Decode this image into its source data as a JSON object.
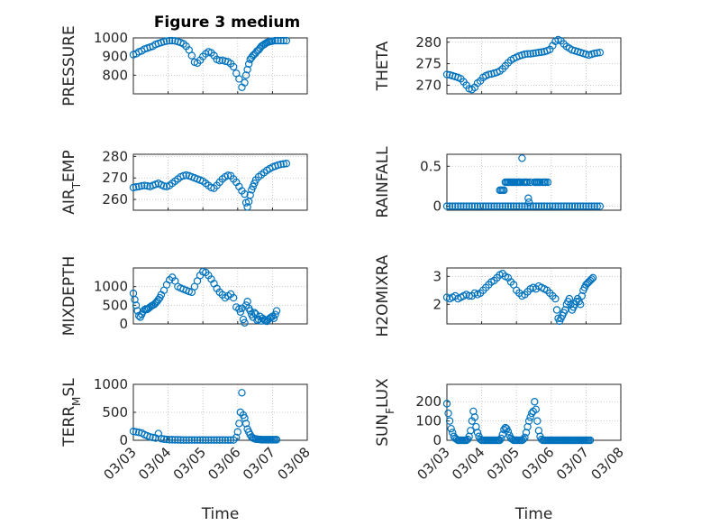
{
  "figure_title": "Figure 3 medium",
  "chart_data": [
    {
      "type": "scatter",
      "ylabel": "PRESSURE",
      "xlabel": "",
      "title": "Figure 3 medium",
      "xlim": [
        0,
        5
      ],
      "ylim": [
        700,
        1000
      ],
      "yticks": [
        800,
        900,
        1000
      ],
      "xtick_labels_shown": false,
      "grid": true,
      "x": [
        0,
        0.08,
        0.16,
        0.24,
        0.32,
        0.4,
        0.48,
        0.56,
        0.64,
        0.72,
        0.8,
        0.88,
        0.96,
        1.04,
        1.12,
        1.2,
        1.28,
        1.36,
        1.44,
        1.52,
        1.6,
        1.68,
        1.76,
        1.84,
        1.92,
        2.0,
        2.08,
        2.16,
        2.24,
        2.32,
        2.4,
        2.48,
        2.56,
        2.64,
        2.72,
        2.8,
        2.88,
        2.96,
        3.04,
        3.12,
        3.2,
        3.24,
        3.28,
        3.32,
        3.36,
        3.4,
        3.44,
        3.48,
        3.52,
        3.56,
        3.6,
        3.64,
        3.68,
        3.72,
        3.76,
        3.8,
        3.84,
        3.88,
        3.92,
        3.96,
        4.0,
        4.08,
        4.16,
        4.24,
        4.32,
        4.4
      ],
      "y": [
        910,
        915,
        925,
        930,
        940,
        945,
        950,
        955,
        965,
        970,
        975,
        980,
        983,
        985,
        985,
        984,
        980,
        975,
        968,
        955,
        935,
        905,
        870,
        865,
        880,
        900,
        915,
        925,
        920,
        905,
        885,
        878,
        880,
        875,
        872,
        862,
        845,
        810,
        780,
        735,
        760,
        800,
        830,
        860,
        885,
        895,
        905,
        912,
        920,
        930,
        935,
        945,
        955,
        960,
        965,
        970,
        975,
        978,
        980,
        982,
        983,
        985,
        985,
        985,
        985,
        985
      ]
    },
    {
      "type": "scatter",
      "ylabel": "THETA",
      "xlabel": "",
      "xlim": [
        0,
        5
      ],
      "ylim": [
        268,
        281
      ],
      "yticks": [
        270,
        275,
        280
      ],
      "xtick_labels_shown": false,
      "grid": true,
      "x": [
        0,
        0.08,
        0.16,
        0.24,
        0.32,
        0.4,
        0.48,
        0.56,
        0.64,
        0.72,
        0.8,
        0.88,
        0.96,
        1.04,
        1.12,
        1.2,
        1.28,
        1.36,
        1.44,
        1.52,
        1.6,
        1.68,
        1.76,
        1.84,
        1.92,
        2.0,
        2.08,
        2.16,
        2.24,
        2.32,
        2.4,
        2.48,
        2.56,
        2.64,
        2.72,
        2.8,
        2.88,
        2.96,
        3.04,
        3.12,
        3.2,
        3.28,
        3.36,
        3.44,
        3.52,
        3.6,
        3.68,
        3.76,
        3.84,
        3.92,
        4.0,
        4.08,
        4.16,
        4.24,
        4.32,
        4.4
      ],
      "y": [
        272.5,
        272.4,
        272.2,
        272.0,
        271.8,
        271.5,
        270.8,
        270.0,
        269.2,
        269.0,
        269.5,
        270.5,
        271.0,
        271.8,
        272.2,
        272.5,
        272.6,
        272.8,
        273.0,
        273.3,
        273.8,
        274.5,
        275.2,
        275.8,
        276.2,
        276.5,
        276.8,
        277.0,
        277.2,
        277.3,
        277.3,
        277.4,
        277.5,
        277.6,
        277.7,
        277.8,
        278.0,
        278.3,
        279.2,
        280.2,
        280.6,
        280.3,
        279.6,
        279.0,
        278.6,
        278.2,
        278.0,
        277.8,
        277.6,
        277.4,
        277.2,
        277.0,
        277.2,
        277.4,
        277.5,
        277.6
      ]
    },
    {
      "type": "scatter",
      "ylabel": "AIR_TEMP",
      "xlabel": "",
      "xlim": [
        0,
        5
      ],
      "ylim": [
        255,
        281
      ],
      "yticks": [
        260,
        270,
        280
      ],
      "xtick_labels_shown": false,
      "grid": true,
      "x": [
        0,
        0.08,
        0.16,
        0.24,
        0.32,
        0.4,
        0.48,
        0.56,
        0.64,
        0.72,
        0.8,
        0.88,
        0.96,
        1.04,
        1.12,
        1.2,
        1.28,
        1.36,
        1.44,
        1.52,
        1.6,
        1.68,
        1.76,
        1.84,
        1.92,
        2.0,
        2.08,
        2.16,
        2.24,
        2.32,
        2.4,
        2.48,
        2.56,
        2.64,
        2.72,
        2.8,
        2.88,
        2.96,
        3.04,
        3.12,
        3.2,
        3.24,
        3.28,
        3.32,
        3.36,
        3.4,
        3.44,
        3.48,
        3.52,
        3.6,
        3.68,
        3.76,
        3.84,
        3.92,
        4.0,
        4.08,
        4.16,
        4.24,
        4.32,
        4.4
      ],
      "y": [
        265.5,
        265.8,
        266,
        266.3,
        266.5,
        266.3,
        266,
        266.5,
        267,
        267.5,
        266.8,
        266.2,
        266,
        266.5,
        267.5,
        268.5,
        269.5,
        270.5,
        271,
        271.3,
        271,
        270.5,
        270,
        269.5,
        269,
        268.5,
        267.5,
        266.5,
        265.5,
        265.2,
        266.5,
        268,
        269.5,
        270.5,
        271.2,
        271,
        269.5,
        268,
        266,
        264,
        262.5,
        258.5,
        256.5,
        259,
        262,
        264.5,
        266,
        267.5,
        269,
        270.5,
        271.5,
        272.5,
        273.5,
        274.3,
        275,
        275.5,
        276,
        276.3,
        276.5,
        276.7
      ]
    },
    {
      "type": "scatter",
      "ylabel": "RAINFALL",
      "xlabel": "",
      "xlim": [
        0,
        5
      ],
      "ylim": [
        -0.05,
        0.65
      ],
      "yticks": [
        0,
        0.5
      ],
      "xtick_labels_shown": false,
      "grid": true,
      "x": [
        0,
        0.08,
        0.16,
        0.24,
        0.32,
        0.4,
        0.48,
        0.56,
        0.64,
        0.72,
        0.8,
        0.88,
        0.96,
        1.04,
        1.12,
        1.2,
        1.28,
        1.36,
        1.44,
        1.52,
        1.6,
        1.68,
        1.76,
        1.84,
        1.92,
        2.0,
        2.08,
        2.16,
        2.24,
        2.32,
        2.4,
        2.48,
        2.56,
        2.64,
        2.72,
        2.8,
        2.88,
        2.96,
        3.04,
        3.12,
        3.2,
        3.28,
        3.36,
        3.44,
        3.52,
        3.6,
        3.68,
        3.76,
        3.84,
        3.92,
        4.0,
        4.08,
        4.16,
        4.24,
        4.32,
        4.4,
        1.52,
        1.56,
        1.6,
        1.64,
        1.68,
        1.72,
        1.76,
        1.8,
        1.84,
        1.88,
        1.92,
        1.96,
        2.0,
        2.04,
        2.08,
        2.12,
        2.16,
        2.2,
        2.24,
        2.28,
        2.32,
        2.34,
        2.36,
        2.4,
        2.52,
        2.56,
        2.6,
        2.64,
        2.68,
        2.76,
        2.8,
        2.84,
        2.9
      ],
      "y": [
        0,
        0,
        0,
        0,
        0,
        0,
        0,
        0,
        0,
        0,
        0,
        0,
        0,
        0,
        0,
        0,
        0,
        0,
        0,
        0,
        0,
        0,
        0,
        0,
        0,
        0,
        0,
        0,
        0,
        0,
        0,
        0,
        0,
        0,
        0,
        0,
        0,
        0,
        0,
        0,
        0,
        0,
        0,
        0,
        0,
        0,
        0,
        0,
        0,
        0,
        0,
        0,
        0,
        0,
        0,
        0,
        0.2,
        0.2,
        0.2,
        0.2,
        0.3,
        0.3,
        0.3,
        0.3,
        0.3,
        0.3,
        0.3,
        0.3,
        0.3,
        0.3,
        0.3,
        0.3,
        0.6,
        0.3,
        0.3,
        0.3,
        0.3,
        0.1,
        0.05,
        0.3,
        0.3,
        0.3,
        0.3,
        0.3,
        0.3,
        0.3,
        0.3,
        0.3,
        0.3
      ]
    },
    {
      "type": "scatter",
      "ylabel": "MIXDEPTH",
      "xlabel": "",
      "xlim": [
        0,
        5
      ],
      "ylim": [
        0,
        1500
      ],
      "yticks": [
        0,
        500,
        1000
      ],
      "xtick_labels_shown": false,
      "grid": true,
      "x": [
        0,
        0.04,
        0.08,
        0.12,
        0.16,
        0.2,
        0.24,
        0.28,
        0.32,
        0.36,
        0.4,
        0.44,
        0.48,
        0.52,
        0.56,
        0.6,
        0.64,
        0.68,
        0.72,
        0.76,
        0.8,
        0.88,
        0.96,
        1.04,
        1.12,
        1.2,
        1.28,
        1.36,
        1.44,
        1.52,
        1.6,
        1.68,
        1.76,
        1.84,
        1.92,
        2.0,
        2.08,
        2.16,
        2.24,
        2.32,
        2.4,
        2.48,
        2.56,
        2.64,
        2.72,
        2.8,
        2.88,
        2.96,
        3.04,
        3.08,
        3.12,
        3.16,
        3.2,
        3.24,
        3.28,
        3.32,
        3.36,
        3.4,
        3.44,
        3.48,
        3.52,
        3.56,
        3.6,
        3.64,
        3.68,
        3.72,
        3.76,
        3.8,
        3.84,
        3.88,
        3.92,
        3.96,
        4.0,
        4.04,
        4.08,
        4.12
      ],
      "y": [
        820,
        650,
        500,
        350,
        220,
        180,
        260,
        330,
        380,
        400,
        390,
        420,
        450,
        480,
        500,
        520,
        560,
        600,
        650,
        700,
        780,
        900,
        1050,
        1180,
        1250,
        1150,
        1000,
        960,
        930,
        900,
        870,
        850,
        1000,
        1150,
        1300,
        1400,
        1380,
        1300,
        1200,
        1080,
        950,
        850,
        780,
        700,
        750,
        800,
        700,
        450,
        400,
        320,
        420,
        120,
        30,
        500,
        600,
        420,
        350,
        250,
        180,
        300,
        260,
        100,
        120,
        200,
        80,
        150,
        110,
        90,
        70,
        120,
        150,
        180,
        200,
        150,
        250,
        350
      ]
    },
    {
      "type": "scatter",
      "ylabel": "H2OMIXRA",
      "xlabel": "",
      "xlim": [
        0,
        5
      ],
      "ylim": [
        1.3,
        3.3
      ],
      "yticks": [
        2,
        3
      ],
      "xtick_labels_shown": false,
      "grid": true,
      "x": [
        0,
        0.08,
        0.16,
        0.24,
        0.32,
        0.4,
        0.48,
        0.56,
        0.64,
        0.72,
        0.8,
        0.88,
        0.96,
        1.04,
        1.12,
        1.2,
        1.28,
        1.36,
        1.44,
        1.52,
        1.6,
        1.68,
        1.76,
        1.84,
        1.92,
        2.0,
        2.08,
        2.16,
        2.24,
        2.32,
        2.4,
        2.48,
        2.56,
        2.64,
        2.72,
        2.8,
        2.88,
        2.96,
        3.04,
        3.12,
        3.16,
        3.2,
        3.24,
        3.28,
        3.32,
        3.36,
        3.4,
        3.44,
        3.48,
        3.52,
        3.56,
        3.6,
        3.64,
        3.68,
        3.72,
        3.76,
        3.8,
        3.84,
        3.88,
        3.92,
        3.96,
        4.0,
        4.04,
        4.08,
        4.12,
        4.16,
        4.2
      ],
      "y": [
        2.25,
        2.2,
        2.25,
        2.3,
        2.2,
        2.25,
        2.3,
        2.35,
        2.3,
        2.3,
        2.4,
        2.35,
        2.4,
        2.5,
        2.6,
        2.7,
        2.8,
        2.85,
        2.95,
        3.05,
        3.1,
        3.0,
        2.95,
        2.8,
        2.7,
        2.5,
        2.4,
        2.3,
        2.35,
        2.45,
        2.55,
        2.6,
        2.55,
        2.65,
        2.6,
        2.55,
        2.5,
        2.4,
        2.3,
        2.2,
        1.8,
        1.5,
        1.4,
        1.5,
        1.6,
        1.7,
        1.8,
        2.0,
        2.1,
        2.2,
        2.0,
        1.8,
        1.9,
        2.0,
        2.1,
        2.2,
        2.1,
        2.0,
        2.3,
        2.5,
        2.6,
        2.7,
        2.75,
        2.8,
        2.85,
        2.9,
        2.95
      ]
    },
    {
      "type": "scatter",
      "ylabel": "TERR_MSL",
      "xlabel": "Time",
      "xlim": [
        0,
        5
      ],
      "ylim": [
        0,
        1000
      ],
      "yticks": [
        0,
        500,
        1000
      ],
      "xtick_labels": [
        "03/03",
        "03/04",
        "03/05",
        "03/06",
        "03/07",
        "03/08"
      ],
      "grid": true,
      "x": [
        0,
        0.08,
        0.16,
        0.24,
        0.32,
        0.4,
        0.48,
        0.56,
        0.64,
        0.72,
        0.8,
        0.88,
        0.96,
        1.04,
        1.12,
        1.2,
        1.28,
        1.36,
        1.44,
        1.52,
        1.6,
        1.68,
        1.76,
        1.84,
        1.92,
        2.0,
        2.08,
        2.16,
        2.24,
        2.32,
        2.4,
        2.48,
        2.56,
        2.64,
        2.72,
        2.8,
        2.88,
        2.96,
        3.0,
        3.04,
        3.08,
        3.12,
        3.16,
        3.2,
        3.24,
        3.28,
        3.32,
        3.36,
        3.4,
        3.44,
        3.48,
        3.52,
        3.56,
        3.6,
        3.64,
        3.68,
        3.72,
        3.76,
        3.8,
        3.84,
        3.88,
        3.92,
        3.96,
        4.0,
        4.04,
        4.08,
        4.12
      ],
      "y": [
        160,
        150,
        140,
        130,
        100,
        80,
        60,
        50,
        40,
        120,
        30,
        20,
        15,
        10,
        10,
        8,
        8,
        6,
        5,
        5,
        5,
        5,
        5,
        5,
        5,
        5,
        5,
        5,
        5,
        5,
        5,
        5,
        5,
        5,
        5,
        5,
        5,
        50,
        150,
        300,
        500,
        850,
        450,
        400,
        300,
        200,
        150,
        100,
        60,
        40,
        30,
        20,
        20,
        15,
        15,
        10,
        10,
        10,
        10,
        10,
        10,
        10,
        10,
        10,
        10,
        10,
        10
      ]
    },
    {
      "type": "scatter",
      "ylabel": "SUN_FLUX",
      "xlabel": "Time",
      "xlim": [
        0,
        5
      ],
      "ylim": [
        0,
        290
      ],
      "yticks": [
        0,
        100,
        200
      ],
      "xtick_labels": [
        "03/03",
        "03/04",
        "03/05",
        "03/06",
        "03/07",
        "03/08"
      ],
      "grid": true,
      "x": [
        0,
        0.04,
        0.08,
        0.12,
        0.16,
        0.2,
        0.24,
        0.28,
        0.32,
        0.36,
        0.4,
        0.44,
        0.48,
        0.52,
        0.56,
        0.6,
        0.64,
        0.68,
        0.72,
        0.76,
        0.8,
        0.84,
        0.88,
        0.92,
        0.96,
        1.0,
        1.04,
        1.08,
        1.12,
        1.16,
        1.2,
        1.24,
        1.28,
        1.32,
        1.36,
        1.4,
        1.44,
        1.48,
        1.52,
        1.56,
        1.6,
        1.64,
        1.68,
        1.72,
        1.76,
        1.8,
        1.84,
        1.88,
        1.92,
        1.96,
        2.0,
        2.04,
        2.08,
        2.12,
        2.16,
        2.2,
        2.24,
        2.28,
        2.32,
        2.36,
        2.4,
        2.44,
        2.48,
        2.52,
        2.56,
        2.6,
        2.64,
        2.68,
        2.72,
        2.76,
        2.8,
        2.84,
        2.88,
        2.92,
        2.96,
        3.0,
        3.04,
        3.08,
        3.12,
        3.16,
        3.2,
        3.24,
        3.28,
        3.32,
        3.36,
        3.4,
        3.44,
        3.48,
        3.52,
        3.56,
        3.6,
        3.64,
        3.68,
        3.72,
        3.76,
        3.8,
        3.84,
        3.88,
        3.92,
        3.96,
        4.0,
        4.04,
        4.08,
        4.12
      ],
      "y": [
        190,
        140,
        100,
        60,
        40,
        20,
        10,
        5,
        0,
        0,
        0,
        0,
        0,
        0,
        0,
        5,
        20,
        50,
        100,
        150,
        120,
        70,
        40,
        20,
        5,
        0,
        0,
        0,
        0,
        0,
        0,
        0,
        0,
        0,
        0,
        0,
        0,
        0,
        0,
        10,
        30,
        55,
        65,
        60,
        45,
        25,
        10,
        5,
        0,
        0,
        0,
        0,
        0,
        0,
        0,
        5,
        15,
        40,
        70,
        100,
        120,
        140,
        150,
        200,
        160,
        100,
        50,
        20,
        5,
        0,
        0,
        0,
        0,
        0,
        0,
        0,
        0,
        0,
        0,
        0,
        0,
        0,
        0,
        0,
        0,
        0,
        0,
        0,
        0,
        0,
        0,
        0,
        0,
        0,
        0,
        0,
        0,
        0,
        0,
        0,
        0,
        0,
        0,
        0
      ]
    }
  ]
}
